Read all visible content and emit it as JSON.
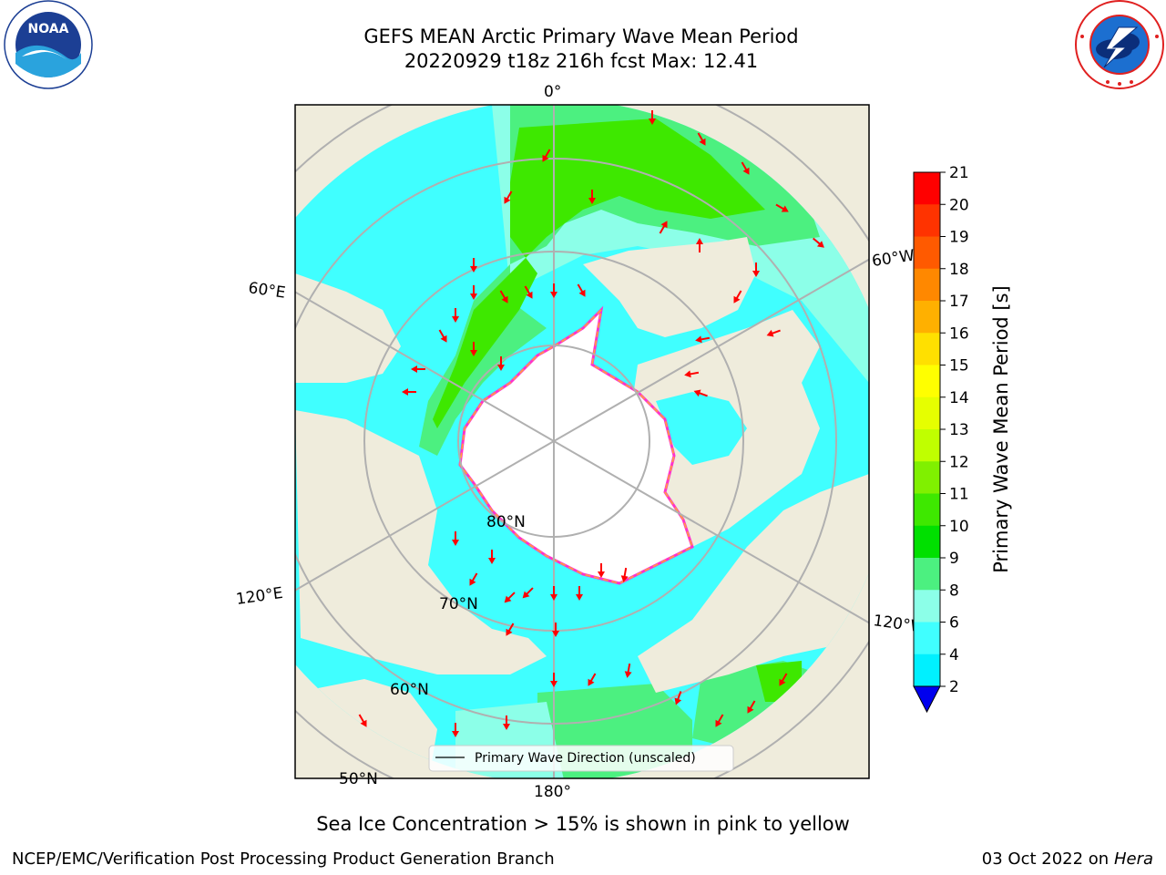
{
  "title": {
    "line1": "GEFS MEAN Arctic Primary Wave Mean Period",
    "line2": "20220929 t18z 216h fcst   Max: 12.41"
  },
  "logos": {
    "left": "noaa-logo",
    "left_text": "NOAA",
    "right": "nws-logo"
  },
  "map": {
    "projection": "north-polar-stereographic",
    "longitude_labels": [
      "0°",
      "60°E",
      "60°W",
      "120°E",
      "120°W",
      "180°"
    ],
    "latitude_labels": [
      "80°N",
      "70°N",
      "60°N",
      "50°N"
    ],
    "colors": {
      "land": "#efecdc",
      "sea_ice": "#ffffff",
      "gridline": "#b0b0b0",
      "arrow": "#ff0000",
      "ice_edge_pink": "#ff33cc",
      "ice_edge_orange": "#ffaa33"
    },
    "legend": {
      "label": "Primary Wave Direction (unscaled)",
      "icon": "line-icon"
    }
  },
  "colorbar": {
    "title": "Primary Wave Mean Period [s]",
    "ticks": [
      "21",
      "20",
      "19",
      "18",
      "17",
      "16",
      "15",
      "14",
      "13",
      "12",
      "11",
      "10",
      "9",
      "8",
      "6",
      "4",
      "2"
    ],
    "colors": [
      "#ff0000",
      "#ff3300",
      "#ff5a00",
      "#ff8800",
      "#ffb000",
      "#ffe000",
      "#ffff00",
      "#e6ff00",
      "#c0ff00",
      "#80f000",
      "#3ee800",
      "#00e000",
      "#4cf080",
      "#8cffe8",
      "#40ffff",
      "#00f0ff",
      "#0088ff"
    ],
    "extend_color": "#0000ee"
  },
  "subcaption": "Sea Ice Concentration > 15% is shown in pink to yellow",
  "footer": {
    "left": "NCEP/EMC/Verification Post Processing Product Generation Branch",
    "right_prefix": "03 Oct 2022 on ",
    "right_host": "Hera"
  }
}
